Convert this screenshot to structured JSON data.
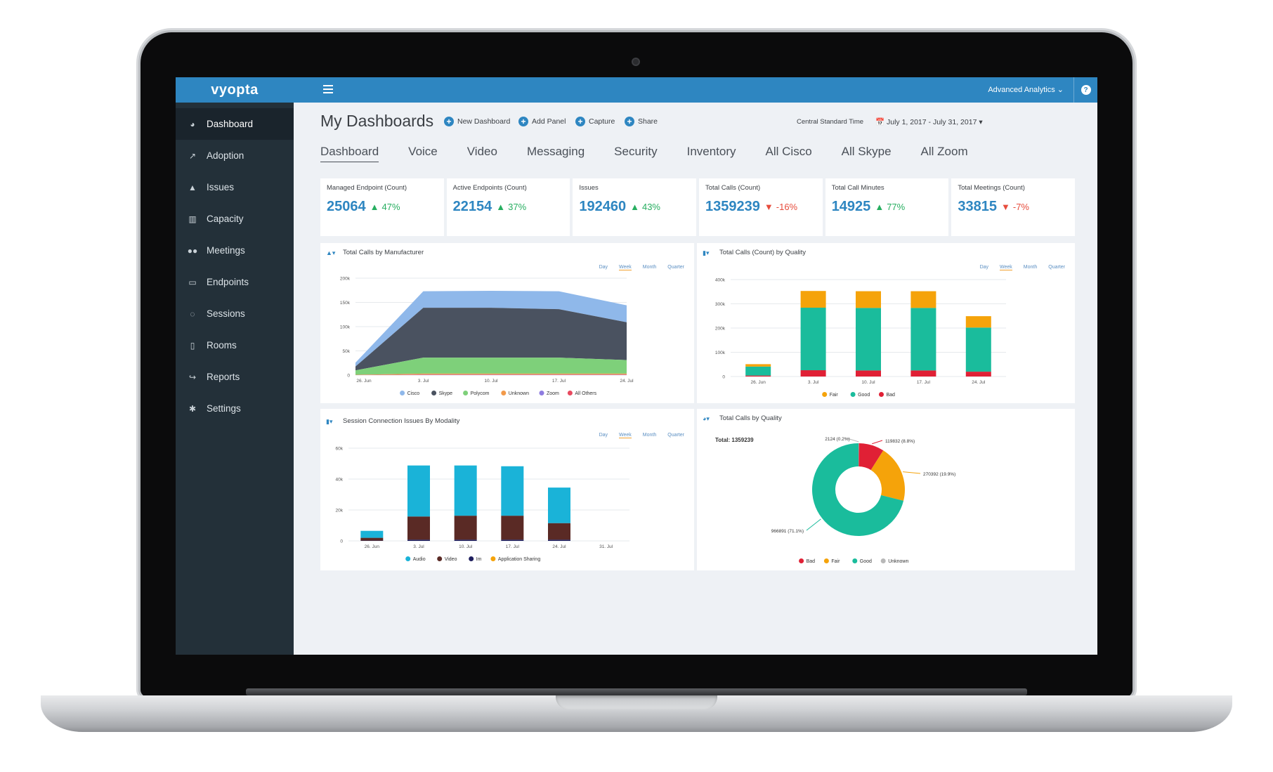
{
  "app": {
    "logo": "vyopta",
    "advanced_analytics": "Advanced Analytics ⌄",
    "help": "?"
  },
  "sidebar": {
    "items": [
      {
        "label": "Dashboard",
        "icon": "dashboard-icon"
      },
      {
        "label": "Adoption",
        "icon": "line-chart-icon"
      },
      {
        "label": "Issues",
        "icon": "warning-icon"
      },
      {
        "label": "Capacity",
        "icon": "bar-chart-icon"
      },
      {
        "label": "Meetings",
        "icon": "users-icon"
      },
      {
        "label": "Endpoints",
        "icon": "monitor-icon"
      },
      {
        "label": "Sessions",
        "icon": "chat-icon"
      },
      {
        "label": "Rooms",
        "icon": "building-icon"
      },
      {
        "label": "Reports",
        "icon": "share-arrow-icon"
      },
      {
        "label": "Settings",
        "icon": "gear-icon"
      }
    ]
  },
  "header": {
    "title": "My Dashboards",
    "actions": [
      "New Dashboard",
      "Add Panel",
      "Capture",
      "Share"
    ],
    "timezone": "Central Standard Time",
    "date_range": "📅 July 1, 2017 - July 31, 2017 ▾"
  },
  "tabs": [
    "Dashboard",
    "Voice",
    "Video",
    "Messaging",
    "Security",
    "Inventory",
    "All Cisco",
    "All Skype",
    "All Zoom"
  ],
  "kpis": [
    {
      "label": "Managed Endpoint (Count)",
      "value": "25064",
      "change": "47%",
      "dir": "up"
    },
    {
      "label": "Active Endpoints (Count)",
      "value": "22154",
      "change": "37%",
      "dir": "up"
    },
    {
      "label": "Issues",
      "value": "192460",
      "change": "43%",
      "dir": "up"
    },
    {
      "label": "Total Calls (Count)",
      "value": "1359239",
      "change": "-16%",
      "dir": "down"
    },
    {
      "label": "Total Call Minutes",
      "value": "14925",
      "change": "77%",
      "dir": "up"
    },
    {
      "label": "Total Meetings (Count)",
      "value": "33815",
      "change": "-7%",
      "dir": "down"
    }
  ],
  "periods": [
    "Day",
    "Week",
    "Month",
    "Quarter"
  ],
  "colors": {
    "up": "#27ae60",
    "down": "#e74c3c",
    "accent": "#2e86c1"
  },
  "chart_data": [
    {
      "type": "area",
      "title": "Total Calls by Manufacturer",
      "x": [
        "26. Jun",
        "3. Jul",
        "10. Jul",
        "17. Jul",
        "24. Jul"
      ],
      "ylim": [
        0,
        200000
      ],
      "yticks": [
        "0",
        "50k",
        "100k",
        "150k",
        "200k"
      ],
      "series": [
        {
          "name": "Cisco",
          "color": "#8fb8ea",
          "values": [
            8000,
            34000,
            35000,
            37000,
            35000
          ]
        },
        {
          "name": "Skype",
          "color": "#4a5260",
          "values": [
            8000,
            103000,
            103000,
            100000,
            78000
          ]
        },
        {
          "name": "Polycom",
          "color": "#7ed07a",
          "values": [
            9000,
            33000,
            33000,
            33000,
            28000
          ]
        },
        {
          "name": "Unknown",
          "color": "#f29a4a",
          "values": [
            500,
            2000,
            2000,
            2000,
            2000
          ]
        },
        {
          "name": "Zoom",
          "color": "#8e7ce0",
          "values": [
            100,
            500,
            500,
            500,
            500
          ]
        },
        {
          "name": "All Others",
          "color": "#e84a5f",
          "values": [
            100,
            500,
            500,
            500,
            500
          ]
        }
      ]
    },
    {
      "type": "bar",
      "title": "Total Calls (Count) by Quality",
      "categories": [
        "26. Jun",
        "3. Jul",
        "10. Jul",
        "17. Jul",
        "24. Jul"
      ],
      "ylim": [
        0,
        400000
      ],
      "yticks": [
        "0",
        "100k",
        "200k",
        "300k",
        "400k"
      ],
      "series": [
        {
          "name": "Bad",
          "color": "#e02035",
          "values": [
            4000,
            26000,
            25000,
            25000,
            20000
          ]
        },
        {
          "name": "Good",
          "color": "#1abc9c",
          "values": [
            37000,
            258000,
            258000,
            258000,
            182000
          ]
        },
        {
          "name": "Fair",
          "color": "#f5a30a",
          "values": [
            10000,
            69000,
            69000,
            69000,
            47000
          ]
        }
      ],
      "legend_order": [
        "Fair",
        "Good",
        "Bad"
      ]
    },
    {
      "type": "bar",
      "title": "Session Connection Issues By Modality",
      "categories": [
        "26. Jun",
        "3. Jul",
        "10. Jul",
        "17. Jul",
        "24. Jul",
        "31. Jul"
      ],
      "ylim": [
        0,
        60000
      ],
      "yticks": [
        "0",
        "20k",
        "40k",
        "60k"
      ],
      "series": [
        {
          "name": "Im",
          "color": "#1f1f5e",
          "values": [
            200,
            800,
            800,
            800,
            800,
            0
          ]
        },
        {
          "name": "Video",
          "color": "#5a2a25",
          "values": [
            1800,
            15000,
            15500,
            15500,
            10700,
            0
          ]
        },
        {
          "name": "Audio",
          "color": "#1ab3d8",
          "values": [
            4500,
            33000,
            32500,
            32000,
            23000,
            0
          ]
        },
        {
          "name": "Application Sharing",
          "color": "#f5a30a",
          "values": [
            0,
            0,
            0,
            0,
            0,
            0
          ]
        }
      ],
      "legend_order": [
        "Audio",
        "Video",
        "Im",
        "Application Sharing"
      ]
    },
    {
      "type": "pie",
      "title": "Total Calls by Quality",
      "total_label": "Total: 1359239",
      "slices": [
        {
          "name": "Bad",
          "value": 119832,
          "label": "119832 (8.8%)",
          "color": "#e02035"
        },
        {
          "name": "Fair",
          "value": 270392,
          "label": "270392 (19.9%)",
          "color": "#f5a30a"
        },
        {
          "name": "Good",
          "value": 966891,
          "label": "966891 (71.1%)",
          "color": "#1abc9c"
        },
        {
          "name": "Unknown",
          "value": 2124,
          "label": "2124 (0.2%)",
          "color": "#b8b8b8"
        }
      ],
      "legend_order": [
        "Bad",
        "Fair",
        "Good",
        "Unknown"
      ]
    }
  ]
}
